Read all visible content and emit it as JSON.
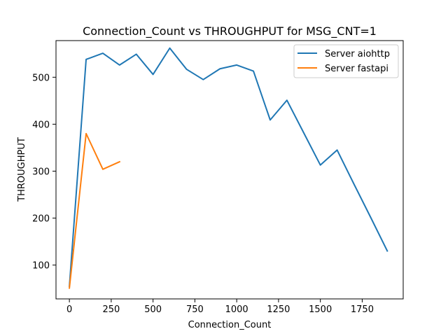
{
  "chart_data": {
    "type": "line",
    "title": "Connection_Count vs THROUGHPUT for MSG_CNT=1",
    "xlabel": "Connection_Count",
    "ylabel": "THROUGHPUT",
    "xlim": [
      -80,
      1995
    ],
    "ylim": [
      28,
      578
    ],
    "xticks": [
      0,
      250,
      500,
      750,
      1000,
      1250,
      1500,
      1750
    ],
    "yticks": [
      100,
      200,
      300,
      400,
      500
    ],
    "grid": false,
    "legend_position": "top-right",
    "series": [
      {
        "name": "Server aiohttp",
        "color": "#1f77b4",
        "x": [
          0,
          100,
          200,
          300,
          400,
          500,
          600,
          700,
          800,
          900,
          1000,
          1100,
          1200,
          1300,
          1400,
          1500,
          1600,
          1700,
          1800,
          1900
        ],
        "y": [
          55,
          538,
          551,
          526,
          549,
          506,
          562,
          517,
          495,
          518,
          526,
          513,
          409,
          451,
          382,
          313,
          345,
          273,
          202,
          130
        ]
      },
      {
        "name": "Server fastapi",
        "color": "#ff7f0e",
        "x": [
          0,
          100,
          200,
          300
        ],
        "y": [
          51,
          380,
          304,
          320
        ]
      }
    ]
  }
}
